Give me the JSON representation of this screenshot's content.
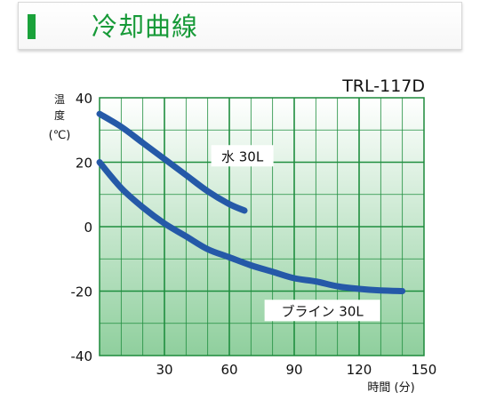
{
  "header": {
    "title": "冷却曲線",
    "accent_color": "#1aa23a"
  },
  "chart_data": {
    "type": "line",
    "model_label": "TRL-117D",
    "ylabel_lines": [
      "温",
      "度",
      "(℃)"
    ],
    "xlabel": "時間 (分)",
    "xlim": [
      0,
      150
    ],
    "ylim": [
      -40,
      40
    ],
    "x_ticks": [
      30,
      60,
      90,
      120,
      150
    ],
    "y_ticks": [
      40,
      20,
      0,
      -20,
      -40
    ],
    "x_tick_labels": [
      "30",
      "60",
      "90",
      "120",
      "150"
    ],
    "y_tick_labels": [
      "40",
      "20",
      "0",
      "-20",
      "-40"
    ],
    "grid": true,
    "line_color": "#2559a8",
    "series": [
      {
        "name": "水 30L",
        "x": [
          0,
          10,
          20,
          30,
          40,
          50,
          60,
          67
        ],
        "y": [
          35,
          31,
          26,
          21,
          16,
          11,
          7,
          5
        ]
      },
      {
        "name": "ブライン 30L",
        "x": [
          0,
          10,
          20,
          30,
          40,
          50,
          60,
          70,
          80,
          90,
          100,
          110,
          120,
          130,
          140
        ],
        "y": [
          20,
          12,
          6,
          1,
          -3,
          -7,
          -9.5,
          -12,
          -14,
          -16,
          -17,
          -18.5,
          -19.3,
          -19.8,
          -20
        ]
      }
    ]
  }
}
